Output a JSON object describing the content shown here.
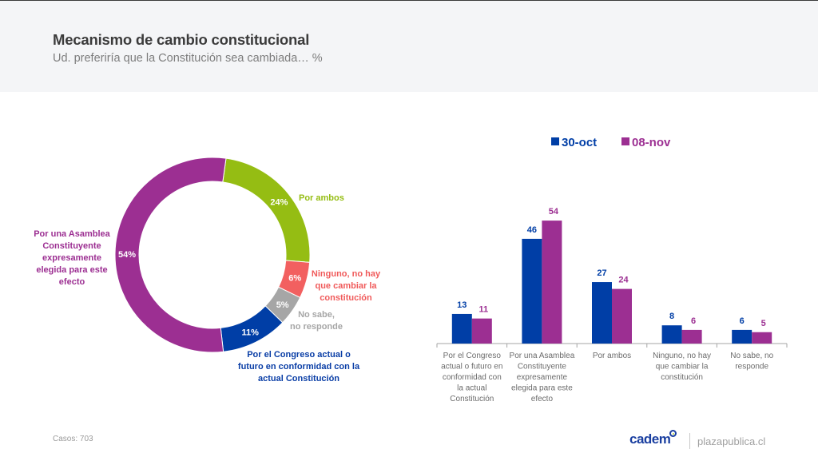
{
  "header": {
    "title": "Mecanismo de cambio constitucional",
    "subtitle": "Ud. preferiría que la Constitución sea cambiada… %"
  },
  "chart_data": [
    {
      "type": "pie",
      "variant": "donut",
      "title": "",
      "slices": [
        {
          "label": "Por ambos",
          "value": 24,
          "value_label": "24%",
          "color": "#95bd13",
          "label_color": "#95bd13"
        },
        {
          "label": "Ninguno, no hay que cambiar la constitución",
          "value": 6,
          "value_label": "6%",
          "color": "#f26060",
          "label_color": "#f05a5a"
        },
        {
          "label": "No sabe, no responde",
          "value": 5,
          "value_label": "5%",
          "color": "#a6a6a6",
          "label_color": "#a6a6a6"
        },
        {
          "label": "Por el Congreso actual o futuro en conformidad con la actual Constitución",
          "value": 11,
          "value_label": "11%",
          "color": "#003ea6",
          "label_color": "#0a3ea6"
        },
        {
          "label": "Por una Asamblea Constituyente expresamente elegida para este efecto",
          "value": 54,
          "value_label": "54%",
          "color": "#9c2f92",
          "label_color": "#9c2f92"
        }
      ],
      "label_lines": [
        [
          "Por ambos"
        ],
        [
          "Ninguno, no hay",
          "que cambiar la",
          "constitución"
        ],
        [
          "No sabe,",
          "no responde"
        ],
        [
          "Por el Congreso actual o",
          "futuro en conformidad con la",
          "actual Constitución"
        ],
        [
          "Por una Asamblea",
          "Constituyente",
          "expresamente",
          "elegida para este",
          "efecto"
        ]
      ]
    },
    {
      "type": "bar",
      "title": "",
      "xlabel": "",
      "ylabel": "",
      "ylim": [
        0,
        60
      ],
      "grid": false,
      "legend": {
        "position": "top",
        "entries": [
          "30-oct",
          "08-nov"
        ]
      },
      "categories": [
        "Por el Congreso actual o futuro en conformidad con la actual Constitución",
        "Por una Asamblea Constituyente expresamente elegida para este efecto",
        "Por ambos",
        "Ninguno, no hay que cambiar la constitución",
        "No sabe, no responde"
      ],
      "category_lines": [
        [
          "Por el Congreso",
          "actual o futuro en",
          "conformidad con",
          "la actual",
          "Constitución"
        ],
        [
          "Por una Asamblea",
          "Constituyente",
          "expresamente",
          "elegida para este",
          "efecto"
        ],
        [
          "Por ambos"
        ],
        [
          "Ninguno, no hay",
          "que cambiar la",
          "constitución"
        ],
        [
          "No sabe, no",
          "responde"
        ]
      ],
      "series": [
        {
          "name": "30-oct",
          "color": "#003ea6",
          "values": [
            13,
            46,
            27,
            8,
            6
          ]
        },
        {
          "name": "08-nov",
          "color": "#9c2f92",
          "values": [
            11,
            54,
            24,
            6,
            5
          ]
        }
      ]
    }
  ],
  "footer": {
    "cases": "Casos: 703",
    "brand": "cadem",
    "site": "plazapublica.cl"
  }
}
